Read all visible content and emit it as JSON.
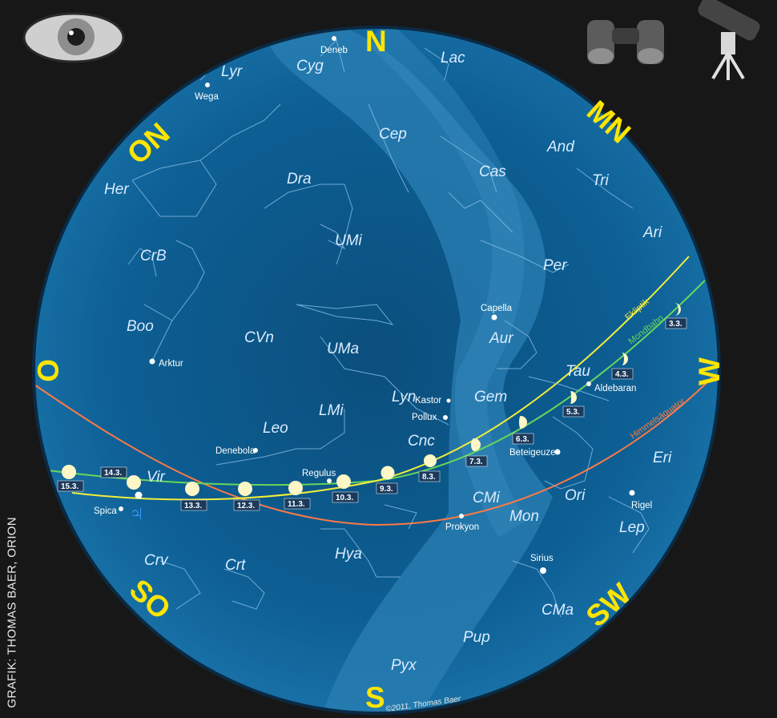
{
  "credit": "GRAFIK: THOMAS BAER, ORION",
  "copyright": "©2011, Thomas Baer",
  "icons": [
    "eye-icon",
    "binoculars-icon",
    "telescope-icon"
  ],
  "directions": {
    "N": "N",
    "S": "S",
    "O": "O",
    "W": "W",
    "ON": "ON",
    "SO": "SO",
    "MN": "MN",
    "SW": "SW"
  },
  "constellations": {
    "lyr": "Lyr",
    "cyg": "Cyg",
    "lac": "Lac",
    "cep": "Cep",
    "and": "And",
    "her": "Her",
    "dra": "Dra",
    "cas": "Cas",
    "tri": "Tri",
    "umi": "UMi",
    "ari": "Ari",
    "crb": "CrB",
    "per": "Per",
    "boo": "Boo",
    "cvn": "CVn",
    "uma": "UMa",
    "aur": "Aur",
    "tau": "Tau",
    "lyn": "Lyn",
    "gem": "Gem",
    "lmi": "LMi",
    "leo": "Leo",
    "cnc": "Cnc",
    "eri": "Eri",
    "vir": "Vir",
    "cmi": "CMi",
    "ori": "Ori",
    "mon": "Mon",
    "lep": "Lep",
    "crv": "Crv",
    "crt": "Crt",
    "hya": "Hya",
    "cma": "CMa",
    "pup": "Pup",
    "pyx": "Pyx"
  },
  "stars": {
    "deneb": "Deneb",
    "wega": "Wega",
    "capella": "Capella",
    "arktur": "Arktur",
    "aldebaran": "Aldebaran",
    "kastor": "Kastor",
    "pollux": "Pollux",
    "denebola": "Denebola",
    "regulus": "Regulus",
    "beteigeuze": "Beteigeuze",
    "rigel": "Rigel",
    "spica": "Spica",
    "prokyon": "Prokyon",
    "sirius": "Sirius"
  },
  "lines": {
    "ekliptik": "Ekliptik",
    "mondbahn": "Mondbahn",
    "himmelsaequator": "Himmelsäquator"
  },
  "moon_dates": [
    "3.3.",
    "4.3.",
    "5.3.",
    "6.3.",
    "7.3.",
    "8.3.",
    "9.3.",
    "10.3.",
    "11.3.",
    "12.3.",
    "13.3.",
    "14.3.",
    "15.3."
  ],
  "colors": {
    "sky": "#0b5c8f",
    "milkyway": "#2a7fb3",
    "ecliptic": "#f2ee3a",
    "moon_orbit": "#66d65a",
    "equator": "#ff7a45",
    "labels": "#ffe500",
    "moon": "#fdf6c6"
  }
}
